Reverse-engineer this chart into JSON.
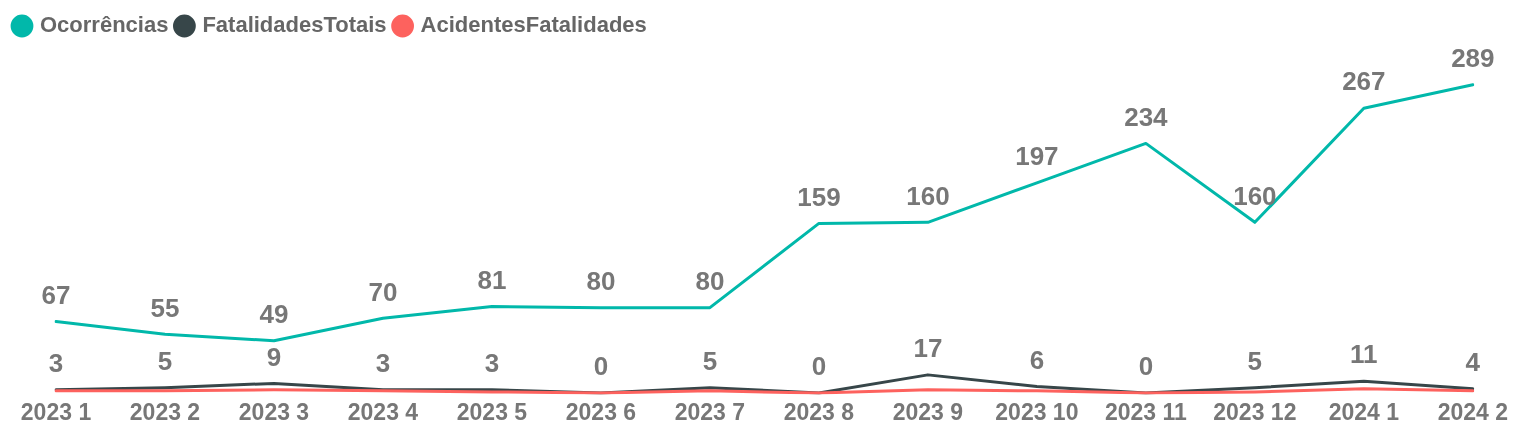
{
  "chart_data": {
    "type": "line",
    "categories": [
      "2023 1",
      "2023 2",
      "2023 3",
      "2023 4",
      "2023 5",
      "2023 6",
      "2023 7",
      "2023 8",
      "2023 9",
      "2023 10",
      "2023 11",
      "2023 12",
      "2024 1",
      "2024 2"
    ],
    "series": [
      {
        "name": "Ocorrências",
        "color": "#01b8aa",
        "values": [
          67,
          55,
          49,
          70,
          81,
          80,
          80,
          159,
          160,
          197,
          234,
          160,
          267,
          289
        ],
        "value_labels": [
          "67",
          "55",
          "49",
          "70",
          "81",
          "80",
          "80",
          "159",
          "160",
          "197",
          "234",
          "160",
          "267",
          "289"
        ]
      },
      {
        "name": "FatalidadesTotais",
        "color": "#374649",
        "values": [
          3,
          5,
          9,
          3,
          3,
          0,
          5,
          0,
          17,
          6,
          0,
          5,
          11,
          4
        ],
        "value_labels": [
          "3",
          "5",
          "9",
          "3",
          "3",
          "0",
          "5",
          "0",
          "17",
          "6",
          "0",
          "5",
          "11",
          "4"
        ]
      },
      {
        "name": "AcidentesFatalidades",
        "color": "#fd625e",
        "values": [
          2,
          2,
          3,
          2,
          1,
          0,
          2,
          0,
          3,
          2,
          0,
          1,
          4,
          2
        ]
      }
    ],
    "tick_labels": "x",
    "legend": "top left",
    "marker": "none",
    "line_style": "solid"
  }
}
